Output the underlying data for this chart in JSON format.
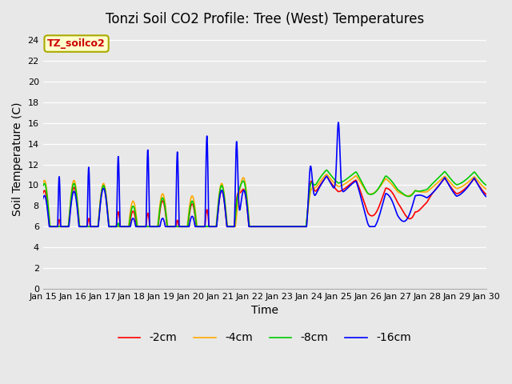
{
  "title": "Tonzi Soil CO2 Profile: Tree (West) Temperatures",
  "xlabel": "Time",
  "ylabel": "Soil Temperature (C)",
  "ylim": [
    0,
    25
  ],
  "yticks": [
    0,
    2,
    4,
    6,
    8,
    10,
    12,
    14,
    16,
    18,
    20,
    22,
    24
  ],
  "legend_labels": [
    "-2cm",
    "-4cm",
    "-8cm",
    "-16cm"
  ],
  "legend_colors": [
    "#ff0000",
    "#ffaa00",
    "#00cc00",
    "#0000ff"
  ],
  "annotation_text": "TZ_soilco2",
  "annotation_bg": "#ffffcc",
  "annotation_border": "#aaaa00",
  "annotation_color": "#cc0000",
  "background_color": "#e8e8e8",
  "title_fontsize": 12,
  "axis_label_fontsize": 10,
  "tick_fontsize": 8,
  "line_width": 1.2
}
